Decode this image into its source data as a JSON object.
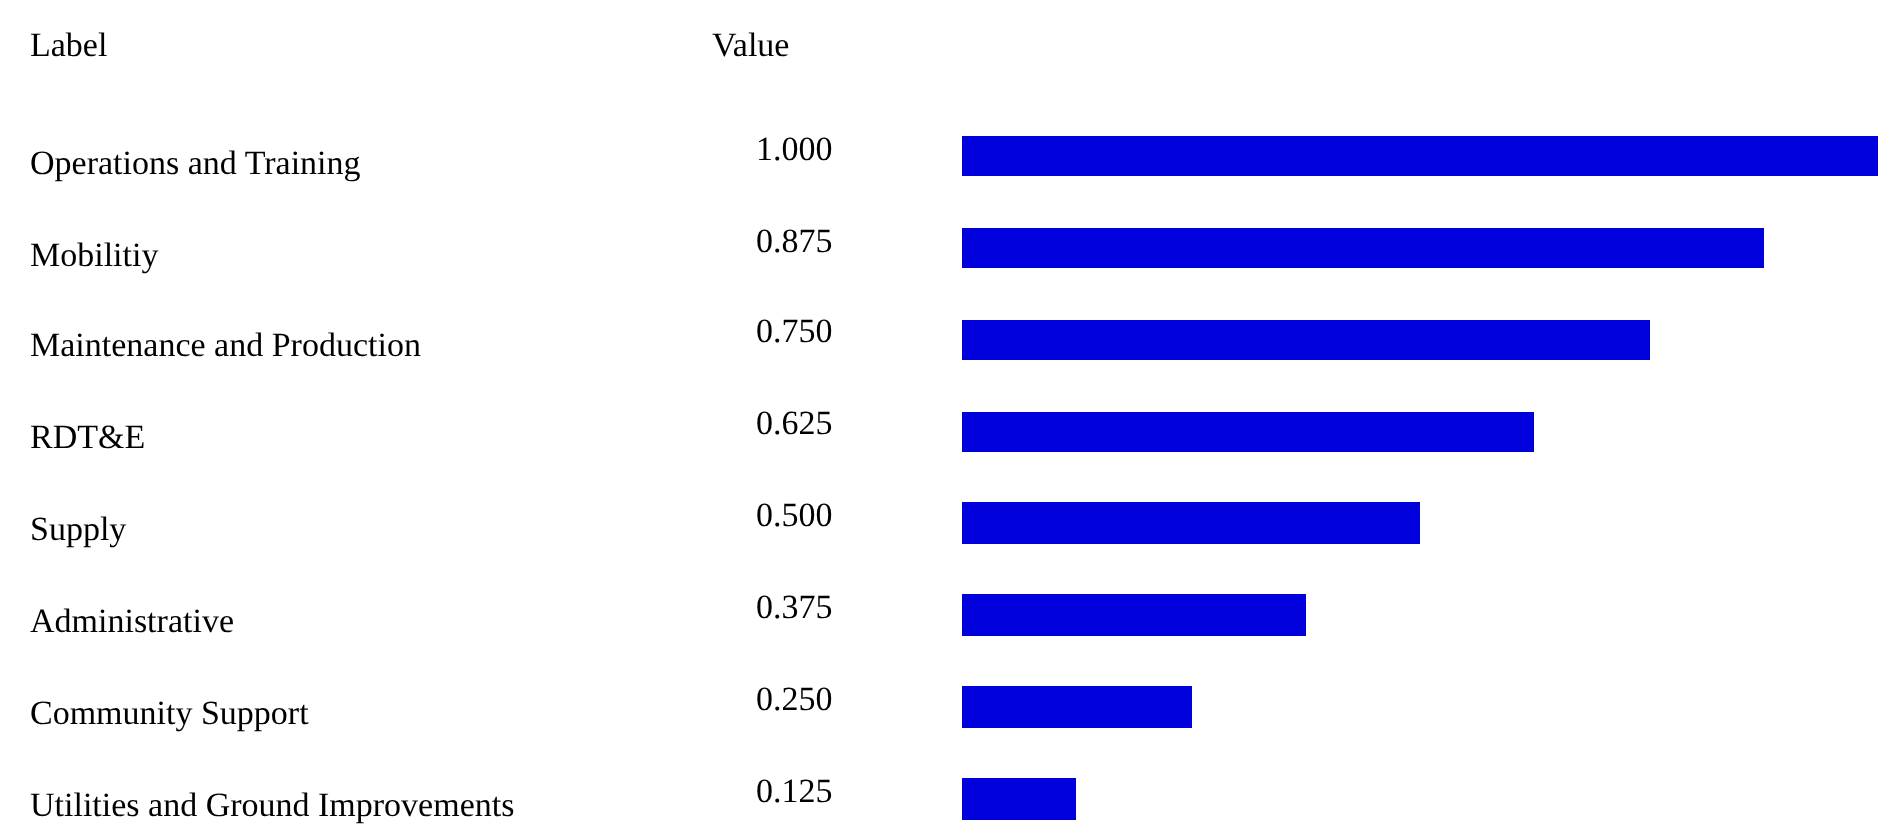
{
  "chart_data": {
    "type": "bar",
    "orientation": "horizontal",
    "categories": [
      "Operations and Training",
      "Mobilitiy",
      "Maintenance and Production",
      "RDT&E",
      "Supply",
      "Administrative",
      "Community Support",
      "Utilities and Ground Improvements"
    ],
    "values": [
      1.0,
      0.875,
      0.75,
      0.625,
      0.5,
      0.375,
      0.25,
      0.125
    ],
    "value_labels": [
      "1.000",
      "0.875",
      "0.750",
      "0.625",
      "0.500",
      "0.375",
      "0.250",
      "0.125"
    ],
    "color": "#0000dd",
    "xlim": [
      0,
      1
    ],
    "legend": false,
    "annotations": [
      "Label",
      "Value"
    ]
  }
}
